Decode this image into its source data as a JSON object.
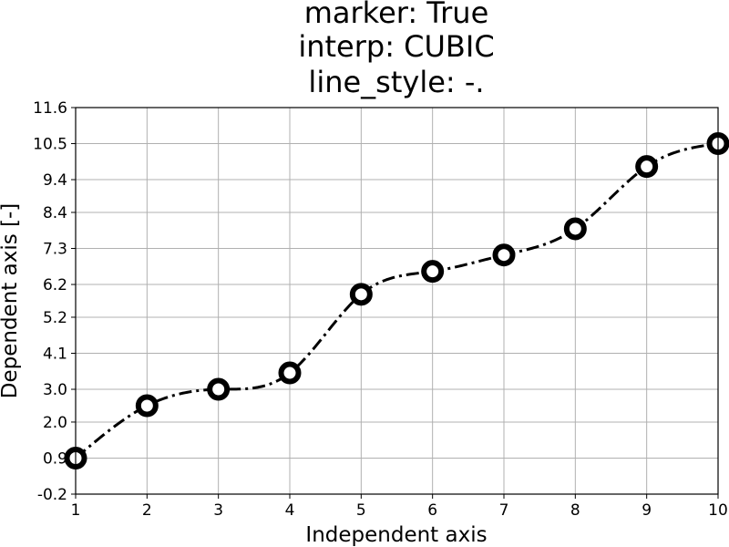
{
  "chart_data": {
    "type": "line",
    "title_lines": [
      "marker: True",
      "interp: CUBIC",
      "line_style: -."
    ],
    "xlabel": "Independent axis",
    "ylabel": "Dependent axis [-]",
    "xlim": [
      1,
      10
    ],
    "ylim": [
      -0.2,
      11.6
    ],
    "x_ticks": [
      1,
      2,
      3,
      4,
      5,
      6,
      7,
      8,
      9,
      10
    ],
    "y_ticks": [
      -0.2,
      0.9,
      2.0,
      3.0,
      4.1,
      5.2,
      6.2,
      7.3,
      8.4,
      9.4,
      10.5,
      11.6
    ],
    "y_tick_labels": [
      "-0.2",
      "0.9",
      "2.0",
      "3.0",
      "4.1",
      "5.2",
      "6.2",
      "7.3",
      "8.4",
      "9.4",
      "10.5",
      "11.6"
    ],
    "grid": true,
    "interpolation": "cubic",
    "line_style": "-.",
    "marker": true,
    "series": [
      {
        "x": [
          1,
          2,
          3,
          4,
          5,
          6,
          7,
          8,
          9,
          10
        ],
        "y": [
          0.9,
          2.5,
          3.0,
          3.5,
          5.9,
          6.6,
          7.1,
          7.9,
          9.8,
          10.5
        ],
        "color": "#000000"
      }
    ]
  }
}
